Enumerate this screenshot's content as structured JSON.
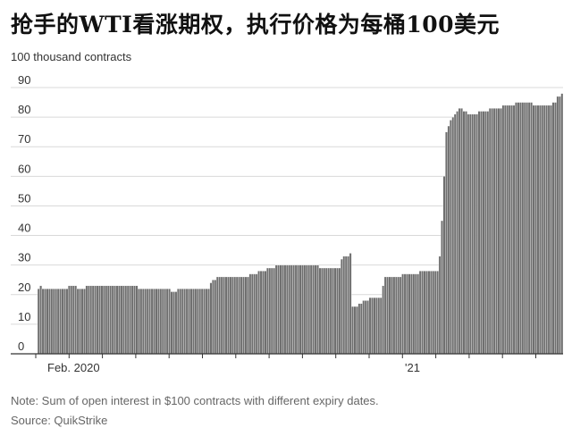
{
  "title": "抢手的WTI看涨期权，执行价格为每桶100美元",
  "unit_label": "100 thousand contracts",
  "note": "Note: Sum of open interest in $100 contracts with different expiry dates.",
  "source": "Source: QuikStrike",
  "colors": {
    "bar": "#6f6f6f",
    "bar_edge": "#ffffff",
    "grid": "#d9d9d9",
    "axis": "#333333",
    "text": "#333333"
  },
  "chart_data": {
    "type": "bar",
    "title": "抢手的WTI看涨期权，执行价格为每桶100美元",
    "ylabel": "100 thousand contracts",
    "ylim": [
      0,
      90
    ],
    "yticks": [
      0,
      10,
      20,
      30,
      40,
      50,
      60,
      70,
      80,
      90
    ],
    "xtick_labels": [
      "Feb. 2020",
      "'21"
    ],
    "grid": true,
    "values": [
      22,
      23,
      22,
      22,
      22,
      22,
      22,
      22,
      22,
      22,
      22,
      22,
      22,
      22,
      23,
      23,
      23,
      23,
      22,
      22,
      22,
      22,
      23,
      23,
      23,
      23,
      23,
      23,
      23,
      23,
      23,
      23,
      23,
      23,
      23,
      23,
      23,
      23,
      23,
      23,
      23,
      23,
      23,
      23,
      23,
      23,
      22,
      22,
      22,
      22,
      22,
      22,
      22,
      22,
      22,
      22,
      22,
      22,
      22,
      22,
      22,
      21,
      21,
      21,
      22,
      22,
      22,
      22,
      22,
      22,
      22,
      22,
      22,
      22,
      22,
      22,
      22,
      22,
      22,
      24,
      25,
      25,
      26,
      26,
      26,
      26,
      26,
      26,
      26,
      26,
      26,
      26,
      26,
      26,
      26,
      26,
      26,
      27,
      27,
      27,
      27,
      28,
      28,
      28,
      28,
      29,
      29,
      29,
      29,
      30,
      30,
      30,
      30,
      30,
      30,
      30,
      30,
      30,
      30,
      30,
      30,
      30,
      30,
      30,
      30,
      30,
      30,
      30,
      30,
      29,
      29,
      29,
      29,
      29,
      29,
      29,
      29,
      29,
      29,
      32,
      33,
      33,
      33,
      34,
      16,
      16,
      16,
      17,
      17,
      18,
      18,
      18,
      19,
      19,
      19,
      19,
      19,
      19,
      23,
      26,
      26,
      26,
      26,
      26,
      26,
      26,
      26,
      27,
      27,
      27,
      27,
      27,
      27,
      27,
      27,
      28,
      28,
      28,
      28,
      28,
      28,
      28,
      28,
      28,
      33,
      45,
      60,
      75,
      77,
      79,
      80,
      81,
      82,
      83,
      83,
      82,
      82,
      81,
      81,
      81,
      81,
      81,
      82,
      82,
      82,
      82,
      82,
      83,
      83,
      83,
      83,
      83,
      83,
      84,
      84,
      84,
      84,
      84,
      84,
      85,
      85,
      85,
      85,
      85,
      85,
      85,
      85,
      84,
      84,
      84,
      84,
      84,
      84,
      84,
      84,
      84,
      85,
      85,
      87,
      87,
      88
    ]
  }
}
